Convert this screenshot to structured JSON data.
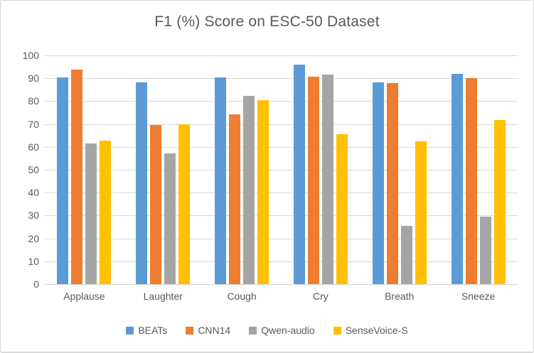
{
  "chart_data": {
    "type": "bar",
    "title": "F1 (%) Score on ESC-50 Dataset",
    "categories": [
      "Applause",
      "Laughter",
      "Cough",
      "Cry",
      "Breath",
      "Sneeze"
    ],
    "series": [
      {
        "name": "BEATs",
        "color": "#5B9BD5",
        "values": [
          90.4,
          88.3,
          90.4,
          95.9,
          88.2,
          91.9
        ]
      },
      {
        "name": "CNN14",
        "color": "#ED7D31",
        "values": [
          93.8,
          69.5,
          74.1,
          90.7,
          87.8,
          90.2
        ]
      },
      {
        "name": "Qwen-audio",
        "color": "#A5A5A5",
        "values": [
          61.4,
          57.1,
          82.4,
          91.6,
          25.5,
          29.6
        ]
      },
      {
        "name": "SenseVoice-S",
        "color": "#FFC000",
        "values": [
          62.8,
          69.8,
          80.4,
          65.5,
          62.3,
          71.7
        ]
      }
    ],
    "xlabel": "",
    "ylabel": "",
    "ylim": [
      0,
      100
    ],
    "ytick_step": 10,
    "ytick_labels": [
      "0",
      "10",
      "20",
      "30",
      "40",
      "50",
      "60",
      "70",
      "80",
      "90",
      "100"
    ],
    "grid": true,
    "legend_position": "bottom"
  },
  "colors": {
    "text": "#595959",
    "gridline": "#D9D9D9",
    "frame_border": "#D9D9D9",
    "background": "#FFFFFF"
  }
}
